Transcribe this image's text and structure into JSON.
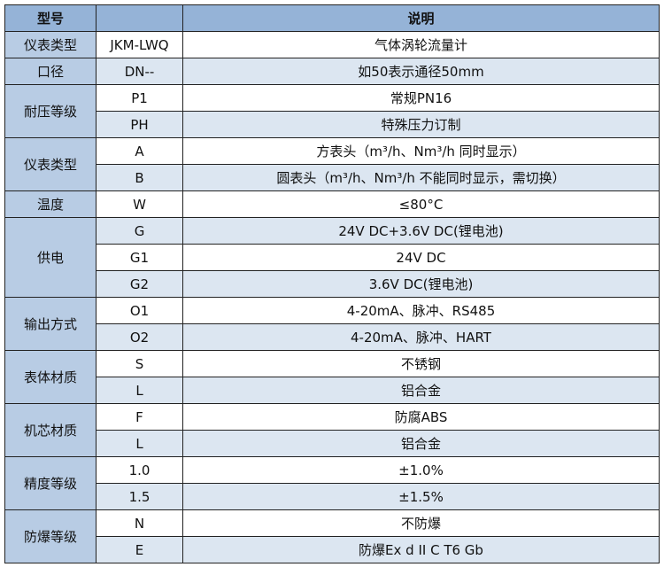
{
  "header": {
    "col1": "型号",
    "col2": "",
    "col3": "说明"
  },
  "colors": {
    "header_bg": "#95b3d7",
    "label_bg": "#b8cce4",
    "alt_row_bg": "#dce6f1",
    "border": "#222222"
  },
  "groups": [
    {
      "label": "仪表类型",
      "rows": [
        {
          "code": "JKM-LWQ",
          "desc": "气体涡轮流量计"
        }
      ]
    },
    {
      "label": "口径",
      "rows": [
        {
          "code": "DN--",
          "desc": "如50表示通径50mm"
        }
      ]
    },
    {
      "label": "耐压等级",
      "rows": [
        {
          "code": "P1",
          "desc": "常规PN16"
        },
        {
          "code": "PH",
          "desc": "特殊压力订制"
        }
      ]
    },
    {
      "label": "仪表类型",
      "rows": [
        {
          "code": "A",
          "desc": "方表头（m³/h、Nm³/h 同时显示）"
        },
        {
          "code": "B",
          "desc": "圆表头（m³/h、Nm³/h 不能同时显示，需切换）"
        }
      ]
    },
    {
      "label": "温度",
      "rows": [
        {
          "code": "W",
          "desc": "≤80°C"
        }
      ]
    },
    {
      "label": "供电",
      "rows": [
        {
          "code": "G",
          "desc": "24V DC+3.6V DC(锂电池)"
        },
        {
          "code": "G1",
          "desc": "24V DC"
        },
        {
          "code": "G2",
          "desc": "3.6V DC(锂电池)"
        }
      ]
    },
    {
      "label": "输出方式",
      "rows": [
        {
          "code": "O1",
          "desc": "4-20mA、脉冲、RS485"
        },
        {
          "code": "O2",
          "desc": "4-20mA、脉冲、HART"
        }
      ]
    },
    {
      "label": "表体材质",
      "rows": [
        {
          "code": "S",
          "desc": "不锈钢"
        },
        {
          "code": "L",
          "desc": "铝合金"
        }
      ]
    },
    {
      "label": "机芯材质",
      "rows": [
        {
          "code": "F",
          "desc": "防腐ABS"
        },
        {
          "code": "L",
          "desc": "铝合金"
        }
      ]
    },
    {
      "label": "精度等级",
      "rows": [
        {
          "code": "1.0",
          "desc": "±1.0%"
        },
        {
          "code": "1.5",
          "desc": "±1.5%"
        }
      ]
    },
    {
      "label": "防爆等级",
      "rows": [
        {
          "code": "N",
          "desc": "不防爆"
        },
        {
          "code": "E",
          "desc": "防爆Ex d II C T6 Gb"
        }
      ]
    }
  ]
}
